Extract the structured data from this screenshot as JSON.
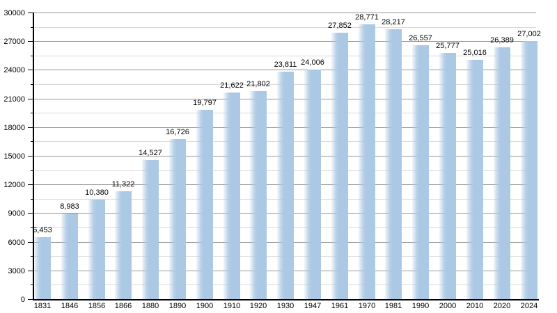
{
  "chart_data": {
    "type": "bar",
    "title": "",
    "xlabel": "",
    "ylabel": "",
    "categories": [
      "1831",
      "1846",
      "1856",
      "1866",
      "1880",
      "1890",
      "1900",
      "1910",
      "1920",
      "1930",
      "1947",
      "1961",
      "1970",
      "1981",
      "1990",
      "2000",
      "2010",
      "2020",
      "2024"
    ],
    "values": [
      6453,
      8983,
      10380,
      11322,
      14527,
      16726,
      19797,
      21622,
      21802,
      23811,
      24006,
      27852,
      28771,
      28217,
      26557,
      25777,
      25016,
      26389,
      27002
    ],
    "value_labels": [
      "6,453",
      "8,983",
      "10,380",
      "11,322",
      "14,527",
      "16,726",
      "19,797",
      "21,622",
      "21,802",
      "23,811",
      "24,006",
      "27,852",
      "28,771",
      "28,217",
      "26,557",
      "25,777",
      "25,016",
      "26,389",
      "27,002"
    ],
    "ylim": [
      0,
      30000
    ],
    "y_major_step": 3000,
    "y_minor_step": 1500,
    "y_tick_labels": [
      "0",
      "3000",
      "6000",
      "9000",
      "12000",
      "15000",
      "18000",
      "21000",
      "24000",
      "27000",
      "30000"
    ],
    "grid": true,
    "legend_position": "none",
    "colors": {
      "bar": "#abc8e4",
      "bar_edge_fade": "rgba(171,200,228,0.15)",
      "major_grid": "#959595",
      "minor_grid": "#dadada",
      "axis": "#000000",
      "label_text": "#000000",
      "background": "#ffffff"
    }
  }
}
